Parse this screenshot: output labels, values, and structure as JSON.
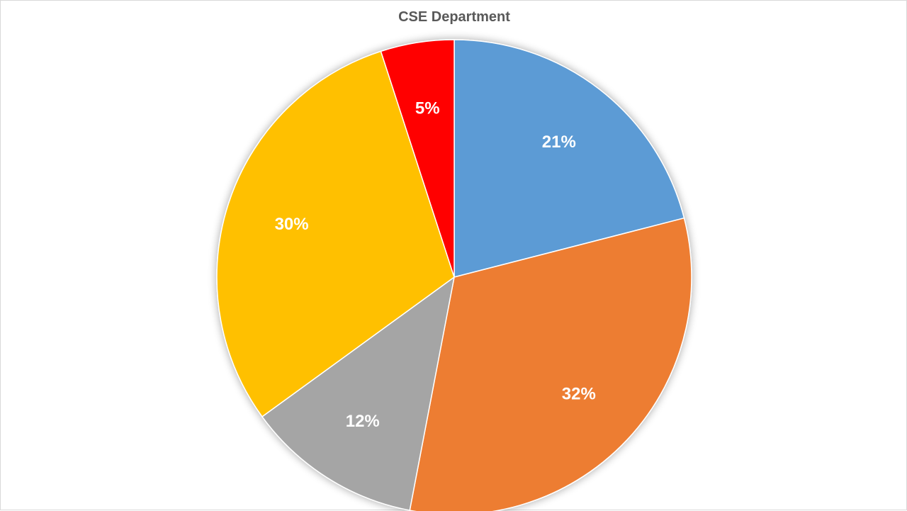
{
  "chart_data": {
    "type": "pie",
    "title": "CSE Department",
    "categories": [
      "",
      "",
      "",
      "",
      ""
    ],
    "values": [
      21,
      32,
      12,
      30,
      5
    ],
    "labels": [
      "21%",
      "32%",
      "12%",
      "30%",
      "5%"
    ],
    "colors": [
      "#5b9bd5",
      "#ed7d31",
      "#a5a5a5",
      "#ffc000",
      "#ff0000"
    ],
    "start_angle_deg": 0,
    "direction": "clockwise",
    "legend": "none"
  }
}
